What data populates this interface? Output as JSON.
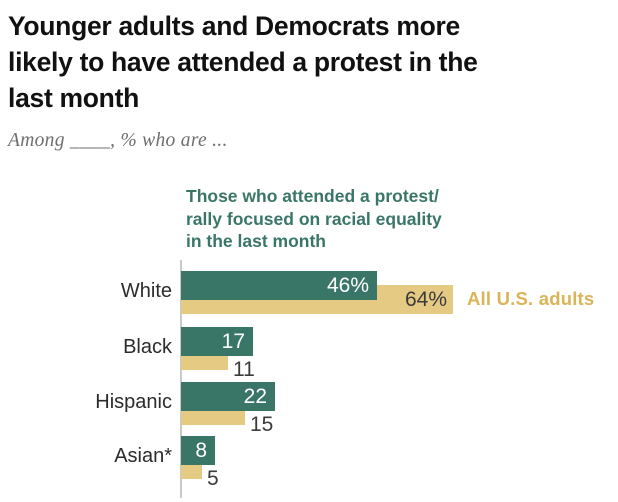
{
  "title": "Younger adults and Democrats more\nlikely to have attended a protest in the\nlast month",
  "subtitle": "Among ____, % who are ...",
  "legend": "Those who attended a protest/\nrally focused on racial equality\nin the last month",
  "all_adults_label": "All U.S. adults",
  "colors": {
    "green_bar": "#3a7668",
    "tan_bar": "#e5ca84",
    "gold_text": "#d9b458",
    "axis_line": "#c9c9c9",
    "dark_value_text": "#3b3b3b",
    "light_value_text": "#ffffff",
    "title_text": "#111111",
    "subtitle_text": "#6e6e6e"
  },
  "chart_data": {
    "type": "bar",
    "orientation": "horizontal",
    "title": "Younger adults and Democrats more likely to have attended a protest in the last month",
    "subtitle": "Among ____, % who are ...",
    "categories": [
      "White",
      "Black",
      "Hispanic",
      "Asian*"
    ],
    "series": [
      {
        "name": "Those who attended a protest/rally focused on racial equality in the last month",
        "color_key": "green_bar",
        "values": [
          46,
          17,
          22,
          8
        ],
        "labels": [
          "46%",
          "17",
          "22",
          "8"
        ]
      },
      {
        "name": "All U.S. adults",
        "color_key": "tan_bar",
        "values": [
          64,
          11,
          15,
          5
        ],
        "labels": [
          "64%",
          "11",
          "15",
          "5"
        ]
      }
    ],
    "xlim": [
      0,
      100
    ],
    "grid": false,
    "legend_position": "top-of-plot",
    "value_labels_shown": true
  }
}
